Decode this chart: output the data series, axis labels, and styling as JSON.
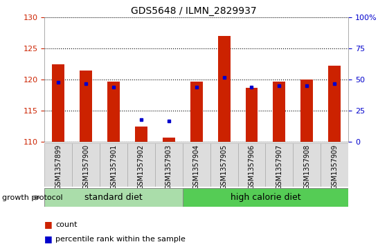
{
  "title": "GDS5648 / ILMN_2829937",
  "samples": [
    "GSM1357899",
    "GSM1357900",
    "GSM1357901",
    "GSM1357902",
    "GSM1357903",
    "GSM1357904",
    "GSM1357905",
    "GSM1357906",
    "GSM1357907",
    "GSM1357908",
    "GSM1357909"
  ],
  "count_values": [
    122.5,
    121.5,
    119.7,
    112.5,
    110.7,
    119.7,
    127.0,
    118.7,
    119.7,
    120.0,
    122.3
  ],
  "percentile_values": [
    48,
    47,
    44,
    18,
    17,
    44,
    52,
    44,
    45,
    45,
    47
  ],
  "ymin": 110,
  "ymax": 130,
  "yticks": [
    110,
    115,
    120,
    125,
    130
  ],
  "y2min": 0,
  "y2max": 100,
  "y2ticks": [
    0,
    25,
    50,
    75,
    100
  ],
  "y2ticklabels": [
    "0",
    "25",
    "50",
    "75",
    "100%"
  ],
  "group_protocol_label": "growth protocol",
  "bar_color": "#CC2200",
  "dot_color": "#0000CC",
  "bar_width": 0.45,
  "tick_label_bg": "#DDDDDD",
  "std_diet_color": "#AADDAA",
  "hcd_diet_color": "#55CC55",
  "legend_count_label": "count",
  "legend_percentile_label": "percentile rank within the sample",
  "std_diet_label": "standard diet",
  "hcd_diet_label": "high calorie diet",
  "std_diet_samples": 5,
  "hcd_diet_samples": 6
}
